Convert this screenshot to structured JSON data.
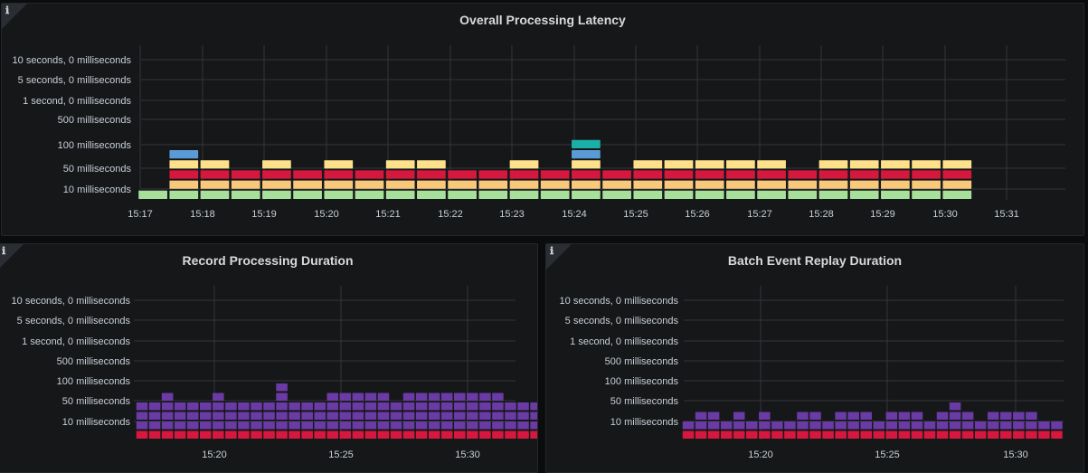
{
  "panels": {
    "overall": {
      "title": "Overall Processing Latency",
      "info_glyph": "ℹ",
      "info_icon": "info-icon"
    },
    "record": {
      "title": "Record Processing Duration",
      "info_glyph": "ℹ",
      "info_icon": "info-icon"
    },
    "replay": {
      "title": "Batch Event Replay Duration",
      "info_glyph": "ℹ",
      "info_icon": "info-icon"
    }
  },
  "chart_data": [
    {
      "type": "heatmap",
      "title": "Overall Processing Latency",
      "x_axis": "time (1 minute buckets)",
      "x_tick_labels": [
        "15:17",
        "15:18",
        "15:19",
        "15:20",
        "15:21",
        "15:22",
        "15:23",
        "15:24",
        "15:25",
        "15:26",
        "15:27",
        "15:28",
        "15:29",
        "15:30",
        "15:31"
      ],
      "y_tick_labels": [
        "10 milliseconds",
        "50 milliseconds",
        "100 milliseconds",
        "500 milliseconds",
        "1 second, 0 milliseconds",
        "5 seconds, 0 milliseconds",
        "10 seconds, 0 milliseconds"
      ],
      "y_scale": "log",
      "y_bucket_count": 10,
      "color_scheme": "spectral",
      "grid": true,
      "legend": "none",
      "columns_top_bucket": [
        1,
        5,
        4,
        3,
        4,
        3,
        4,
        3,
        4,
        4,
        3,
        3,
        4,
        3,
        6,
        3,
        4,
        4,
        4,
        4,
        4,
        3,
        4,
        4,
        4,
        4,
        4
      ],
      "max_top_bucket": 6
    },
    {
      "type": "heatmap",
      "title": "Record Processing Duration",
      "x_tick_labels": [
        "15:20",
        "15:25",
        "15:30"
      ],
      "y_tick_labels": [
        "10 milliseconds",
        "50 milliseconds",
        "100 milliseconds",
        "500 milliseconds",
        "1 second, 0 milliseconds",
        "5 seconds, 0 milliseconds",
        "10 seconds, 0 milliseconds"
      ],
      "y_scale": "log",
      "color_scheme": "spectral",
      "grid": true,
      "legend": "none",
      "columns_top_bucket": [
        4,
        4,
        5,
        4,
        4,
        4,
        5,
        4,
        4,
        4,
        4,
        6,
        4,
        4,
        4,
        5,
        5,
        5,
        5,
        5,
        4,
        5,
        5,
        5,
        5,
        5,
        5,
        5,
        5,
        4,
        4,
        4
      ]
    },
    {
      "type": "heatmap",
      "title": "Batch Event Replay Duration",
      "x_tick_labels": [
        "15:20",
        "15:25",
        "15:30"
      ],
      "y_tick_labels": [
        "10 milliseconds",
        "50 milliseconds",
        "100 milliseconds",
        "500 milliseconds",
        "1 second, 0 milliseconds",
        "5 seconds, 0 milliseconds",
        "10 seconds, 0 milliseconds"
      ],
      "y_scale": "log",
      "color_scheme": "spectral",
      "grid": true,
      "legend": "none",
      "columns_top_bucket": [
        2,
        3,
        3,
        2,
        3,
        2,
        3,
        2,
        2,
        3,
        3,
        2,
        3,
        3,
        3,
        2,
        3,
        3,
        3,
        2,
        3,
        4,
        3,
        2,
        3,
        3,
        3,
        3,
        2,
        2
      ]
    }
  ],
  "colors": {
    "background": "#161719",
    "grid": "#34363b",
    "palette_low_to_high": [
      "#a7e09b",
      "#f9c97b",
      "#d6183f",
      "#fee08b",
      "#5b9bd5",
      "#1ab0a7",
      "#3c7bb8",
      "#5b4aa8",
      "#5e3c99",
      "#6a3aa5"
    ]
  }
}
